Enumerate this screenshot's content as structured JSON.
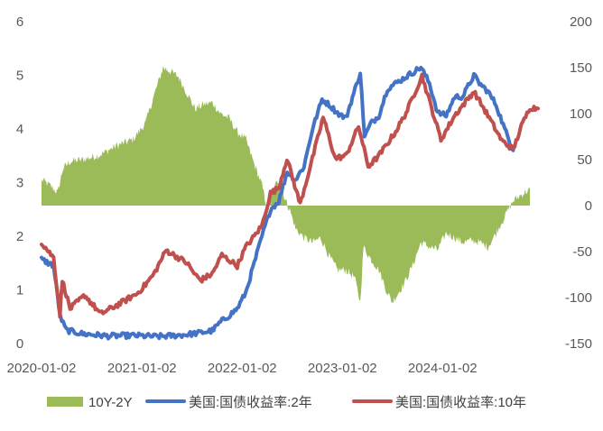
{
  "chart_data": {
    "type": "line",
    "title": "",
    "x_ticks": [
      "2020-01-02",
      "2021-01-02",
      "2022-01-02",
      "2023-01-02",
      "2024-01-02"
    ],
    "y_left": {
      "lim": [
        0,
        6
      ],
      "ticks": [
        "0",
        "1",
        "2",
        "3",
        "4",
        "5",
        "6"
      ]
    },
    "y_right": {
      "lim": [
        -150,
        200
      ],
      "ticks": [
        "-150",
        "-100",
        "-50",
        "0",
        "50",
        "100",
        "150",
        "200"
      ]
    },
    "grid": false,
    "legend_position": "bottom",
    "series": [
      {
        "name": "10Y-2Y",
        "kind": "area",
        "axis": "right",
        "color": "#9bbb59",
        "points": [
          [
            "2020-01-02",
            28
          ],
          [
            "2020-02-01",
            22
          ],
          [
            "2020-03-01",
            14
          ],
          [
            "2020-03-20",
            40
          ],
          [
            "2020-04-15",
            48
          ],
          [
            "2020-06-01",
            50
          ],
          [
            "2020-08-01",
            55
          ],
          [
            "2020-10-01",
            65
          ],
          [
            "2020-12-01",
            72
          ],
          [
            "2021-01-15",
            90
          ],
          [
            "2021-02-15",
            120
          ],
          [
            "2021-03-20",
            150
          ],
          [
            "2021-04-15",
            146
          ],
          [
            "2021-05-15",
            140
          ],
          [
            "2021-06-15",
            122
          ],
          [
            "2021-07-15",
            105
          ],
          [
            "2021-08-15",
            110
          ],
          [
            "2021-09-15",
            112
          ],
          [
            "2021-10-15",
            100
          ],
          [
            "2021-11-15",
            95
          ],
          [
            "2021-12-15",
            80
          ],
          [
            "2022-01-15",
            72
          ],
          [
            "2022-02-15",
            45
          ],
          [
            "2022-03-15",
            22
          ],
          [
            "2022-04-01",
            0
          ],
          [
            "2022-04-20",
            15
          ],
          [
            "2022-05-15",
            28
          ],
          [
            "2022-06-10",
            5
          ],
          [
            "2022-06-25",
            -5
          ],
          [
            "2022-07-15",
            -25
          ],
          [
            "2022-08-15",
            -35
          ],
          [
            "2022-09-15",
            -40
          ],
          [
            "2022-10-15",
            -35
          ],
          [
            "2022-11-15",
            -55
          ],
          [
            "2022-12-15",
            -70
          ],
          [
            "2023-01-15",
            -70
          ],
          [
            "2023-02-15",
            -78
          ],
          [
            "2023-03-08",
            -105
          ],
          [
            "2023-03-20",
            -45
          ],
          [
            "2023-04-15",
            -58
          ],
          [
            "2023-05-15",
            -70
          ],
          [
            "2023-06-15",
            -95
          ],
          [
            "2023-07-03",
            -105
          ],
          [
            "2023-08-15",
            -85
          ],
          [
            "2023-09-15",
            -65
          ],
          [
            "2023-10-15",
            -40
          ],
          [
            "2023-11-15",
            -45
          ],
          [
            "2023-12-15",
            -48
          ],
          [
            "2024-01-15",
            -30
          ],
          [
            "2024-02-15",
            -35
          ],
          [
            "2024-03-15",
            -40
          ],
          [
            "2024-04-15",
            -38
          ],
          [
            "2024-05-15",
            -40
          ],
          [
            "2024-06-15",
            -45
          ],
          [
            "2024-07-15",
            -30
          ],
          [
            "2024-08-15",
            -12
          ],
          [
            "2024-09-15",
            5
          ],
          [
            "2024-10-15",
            12
          ],
          [
            "2024-11-15",
            18
          ]
        ]
      },
      {
        "name": "美国:国债收益率:2年",
        "kind": "line",
        "axis": "left",
        "color": "#4472c4",
        "points": [
          [
            "2020-01-02",
            1.57
          ],
          [
            "2020-02-15",
            1.45
          ],
          [
            "2020-03-10",
            0.5
          ],
          [
            "2020-04-01",
            0.25
          ],
          [
            "2020-06-01",
            0.18
          ],
          [
            "2020-09-01",
            0.14
          ],
          [
            "2020-12-01",
            0.15
          ],
          [
            "2021-01-15",
            0.14
          ],
          [
            "2021-03-01",
            0.13
          ],
          [
            "2021-06-01",
            0.16
          ],
          [
            "2021-08-01",
            0.2
          ],
          [
            "2021-09-15",
            0.24
          ],
          [
            "2021-10-15",
            0.4
          ],
          [
            "2021-11-15",
            0.52
          ],
          [
            "2021-12-15",
            0.65
          ],
          [
            "2022-01-15",
            0.95
          ],
          [
            "2022-02-15",
            1.5
          ],
          [
            "2022-03-15",
            2.0
          ],
          [
            "2022-04-15",
            2.5
          ],
          [
            "2022-05-15",
            2.65
          ],
          [
            "2022-06-15",
            3.2
          ],
          [
            "2022-07-15",
            3.05
          ],
          [
            "2022-08-15",
            3.3
          ],
          [
            "2022-09-15",
            4.0
          ],
          [
            "2022-10-20",
            4.55
          ],
          [
            "2022-11-15",
            4.45
          ],
          [
            "2022-12-15",
            4.3
          ],
          [
            "2023-01-15",
            4.2
          ],
          [
            "2023-03-08",
            5.05
          ],
          [
            "2023-03-24",
            3.85
          ],
          [
            "2023-04-15",
            4.1
          ],
          [
            "2023-05-15",
            4.25
          ],
          [
            "2023-06-15",
            4.75
          ],
          [
            "2023-07-15",
            4.85
          ],
          [
            "2023-08-15",
            4.95
          ],
          [
            "2023-10-15",
            5.15
          ],
          [
            "2023-11-15",
            4.85
          ],
          [
            "2023-12-15",
            4.3
          ],
          [
            "2024-01-15",
            4.25
          ],
          [
            "2024-02-15",
            4.6
          ],
          [
            "2024-03-15",
            4.6
          ],
          [
            "2024-04-25",
            5.0
          ],
          [
            "2024-05-15",
            4.85
          ],
          [
            "2024-06-15",
            4.7
          ],
          [
            "2024-07-15",
            4.45
          ],
          [
            "2024-08-15",
            4.0
          ],
          [
            "2024-09-15",
            3.6
          ]
        ]
      },
      {
        "name": "美国:国债收益率:10年",
        "kind": "line",
        "axis": "left",
        "color": "#c0504d",
        "points": [
          [
            "2020-01-02",
            1.88
          ],
          [
            "2020-02-15",
            1.6
          ],
          [
            "2020-03-09",
            0.54
          ],
          [
            "2020-03-18",
            1.18
          ],
          [
            "2020-04-15",
            0.65
          ],
          [
            "2020-06-08",
            0.9
          ],
          [
            "2020-08-04",
            0.55
          ],
          [
            "2020-10-15",
            0.75
          ],
          [
            "2020-12-15",
            0.93
          ],
          [
            "2021-01-15",
            1.1
          ],
          [
            "2021-02-15",
            1.3
          ],
          [
            "2021-03-31",
            1.74
          ],
          [
            "2021-05-15",
            1.6
          ],
          [
            "2021-06-15",
            1.5
          ],
          [
            "2021-07-15",
            1.28
          ],
          [
            "2021-08-04",
            1.18
          ],
          [
            "2021-09-15",
            1.3
          ],
          [
            "2021-10-20",
            1.65
          ],
          [
            "2021-12-15",
            1.45
          ],
          [
            "2022-01-15",
            1.8
          ],
          [
            "2022-02-15",
            2.0
          ],
          [
            "2022-03-15",
            2.2
          ],
          [
            "2022-04-15",
            2.8
          ],
          [
            "2022-05-15",
            2.9
          ],
          [
            "2022-06-14",
            3.45
          ],
          [
            "2022-08-01",
            2.6
          ],
          [
            "2022-09-15",
            3.45
          ],
          [
            "2022-10-24",
            4.22
          ],
          [
            "2022-12-07",
            3.45
          ],
          [
            "2023-01-15",
            3.5
          ],
          [
            "2023-03-02",
            4.05
          ],
          [
            "2023-04-06",
            3.3
          ],
          [
            "2023-05-15",
            3.5
          ],
          [
            "2023-07-15",
            3.95
          ],
          [
            "2023-08-22",
            4.3
          ],
          [
            "2023-10-19",
            4.99
          ],
          [
            "2023-12-27",
            3.8
          ],
          [
            "2024-02-15",
            4.25
          ],
          [
            "2024-04-25",
            4.7
          ],
          [
            "2024-06-15",
            4.25
          ],
          [
            "2024-08-05",
            3.78
          ],
          [
            "2024-09-16",
            3.62
          ],
          [
            "2024-10-15",
            4.05
          ],
          [
            "2024-11-15",
            4.4
          ],
          [
            "2024-12-15",
            4.38
          ]
        ]
      }
    ]
  }
}
